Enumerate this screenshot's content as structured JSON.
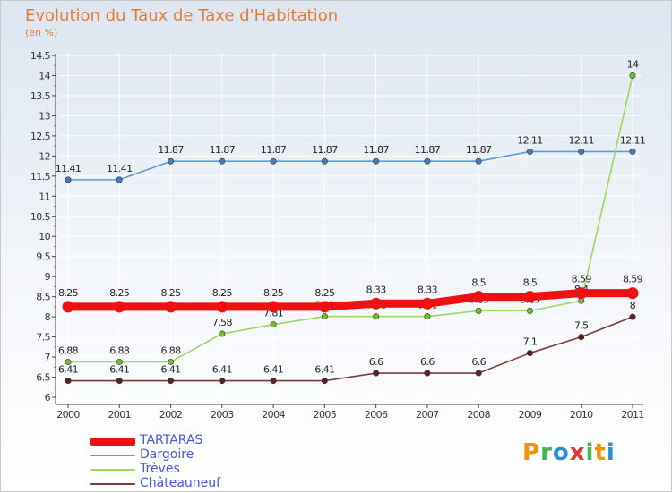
{
  "title": "Evolution du Taux de Taxe d'Habitation",
  "unit": "(en %)",
  "colors": {
    "title": "#e07b39",
    "legend_text": "#4b55d9",
    "axis": "#444444",
    "grid": "#ffffff"
  },
  "chart_data": {
    "type": "line",
    "title": "Evolution du Taux de Taxe d'Habitation",
    "ylabel": "(en %)",
    "xlabel": "",
    "x": [
      "2000",
      "2001",
      "2002",
      "2003",
      "2004",
      "2005",
      "2006",
      "2007",
      "2008",
      "2009",
      "2010",
      "2011"
    ],
    "ylim": [
      6,
      14.5
    ],
    "yticks": [
      "6",
      "6.5",
      "7",
      "7.5",
      "8",
      "8.5",
      "9",
      "9.5",
      "10",
      "10.5",
      "11",
      "11.5",
      "12",
      "12.5",
      "13",
      "13.5",
      "14",
      "14.5"
    ],
    "grid": true,
    "legend_position": "bottom-left",
    "series": [
      {
        "name": "Dargoire",
        "color": "#5b9bd5",
        "marker": "#3f7fc0",
        "values": [
          11.41,
          11.41,
          11.87,
          11.87,
          11.87,
          11.87,
          11.87,
          11.87,
          11.87,
          12.11,
          12.11,
          12.11
        ],
        "labels": [
          "11.41",
          "11.41",
          "11.87",
          "11.87",
          "11.87",
          "11.87",
          "11.87",
          "11.87",
          "11.87",
          "12.11",
          "12.11",
          "12.11"
        ]
      },
      {
        "name": "Trèves",
        "color": "#99d85c",
        "marker": "#6fbd33",
        "values": [
          6.88,
          6.88,
          6.88,
          7.58,
          7.81,
          8.01,
          8.01,
          8.01,
          8.15,
          8.15,
          8.4,
          14
        ],
        "labels": [
          "6.88",
          "6.88",
          "6.88",
          "7.58",
          "7.81",
          "8.01",
          "8.01",
          "8.01",
          "8.15",
          "8.15",
          "8.4",
          "14"
        ]
      },
      {
        "name": "Châteauneuf",
        "color": "#7a3a3a",
        "marker": "#5c2222",
        "values": [
          6.41,
          6.41,
          6.41,
          6.41,
          6.41,
          6.41,
          6.6,
          6.6,
          6.6,
          7.1,
          7.5,
          8
        ],
        "labels": [
          "6.41",
          "6.41",
          "6.41",
          "6.41",
          "6.41",
          "6.41",
          "6.6",
          "6.6",
          "6.6",
          "7.1",
          "7.5",
          "8"
        ]
      },
      {
        "name": "TARTARAS",
        "color": "#ee1111",
        "marker": "#ee1111",
        "values": [
          8.25,
          8.25,
          8.25,
          8.25,
          8.25,
          8.25,
          8.33,
          8.33,
          8.5,
          8.5,
          8.59,
          8.59
        ],
        "labels": [
          "8.25",
          "8.25",
          "8.25",
          "8.25",
          "8.25",
          "8.25",
          "8.33",
          "8.33",
          "8.5",
          "8.5",
          "8.59",
          "8.59"
        ]
      }
    ],
    "legend": [
      "TARTARAS",
      "Dargoire",
      "Trèves",
      "Châteauneuf"
    ]
  },
  "logo": {
    "letters": [
      "P",
      "r",
      "o",
      "x",
      "i",
      "t",
      "i"
    ],
    "colors": [
      "#f29400",
      "#4caf50",
      "#2b8fd6",
      "#e8322f",
      "#4caf50",
      "#f29400",
      "#2b8fd6"
    ]
  }
}
